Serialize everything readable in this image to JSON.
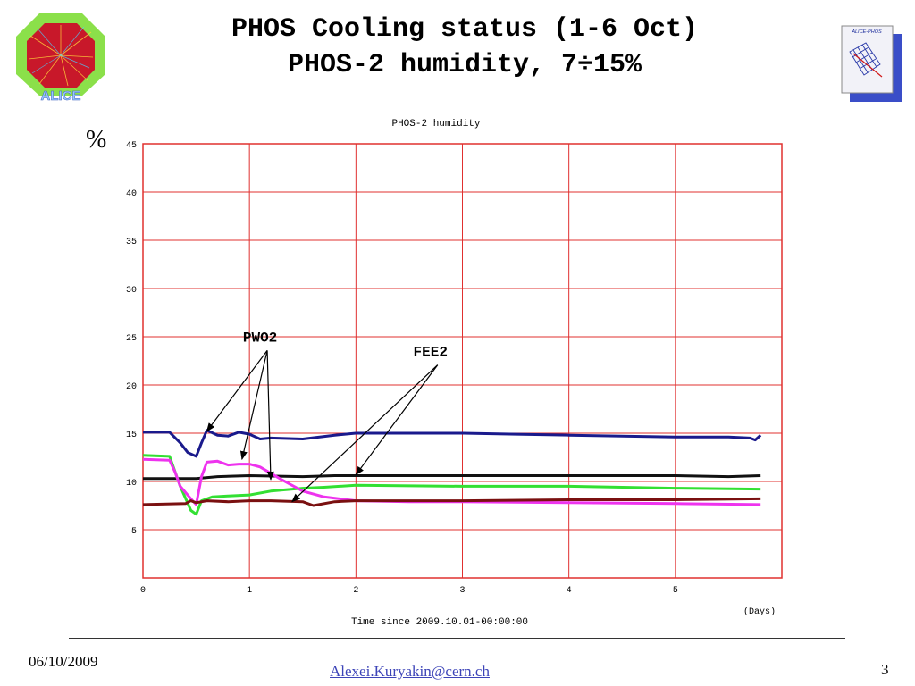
{
  "slide": {
    "title_line1": "PHOS Cooling status (1-6 Oct)",
    "title_line2": "PHOS-2 humidity, 7÷15%",
    "date": "06/10/2009",
    "email": "Alexei.Kuryakin@cern.ch",
    "page_number": "3",
    "y_unit": "%",
    "logo_left_text": "ALICE",
    "logo_right_text": "ALICE-PHOS"
  },
  "colors": {
    "grid": "#e0302f",
    "series_blue": "#1a1a8c",
    "series_black": "#111111",
    "series_green": "#33e033",
    "series_magenta": "#ee33ee",
    "series_darkred": "#7a1010"
  },
  "chart_data": {
    "type": "line",
    "title": "PHOS-2 humidity",
    "xlabel": "Time since 2009.10.01-00:00:00",
    "x_unit": "(Days)",
    "ylabel": "%",
    "xlim": [
      0,
      6
    ],
    "ylim": [
      0,
      45
    ],
    "xticks": [
      0,
      1,
      2,
      3,
      4,
      5
    ],
    "yticks": [
      5,
      10,
      15,
      20,
      25,
      30,
      35,
      40,
      45
    ],
    "grid": true,
    "annotations": [
      {
        "text": "PWO2",
        "x": 1.1,
        "y": 24.5,
        "arrows_to": [
          [
            0.6,
            15.2
          ],
          [
            0.93,
            12.3
          ],
          [
            1.2,
            10.2
          ]
        ]
      },
      {
        "text": "FEE2",
        "x": 2.7,
        "y": 23.0,
        "arrows_to": [
          [
            2.0,
            10.7
          ],
          [
            1.4,
            7.9
          ]
        ]
      }
    ],
    "series": [
      {
        "color": "blue",
        "x": [
          0,
          0.25,
          0.35,
          0.42,
          0.5,
          0.55,
          0.6,
          0.7,
          0.8,
          0.9,
          1.0,
          1.1,
          1.2,
          1.5,
          1.8,
          2.0,
          2.5,
          3.0,
          3.5,
          4.0,
          4.5,
          5.0,
          5.5,
          5.7,
          5.75,
          5.8
        ],
        "y": [
          15.1,
          15.1,
          14.0,
          13.0,
          12.6,
          14.0,
          15.3,
          14.8,
          14.7,
          15.1,
          14.9,
          14.4,
          14.5,
          14.4,
          14.8,
          15.0,
          15.0,
          15.0,
          14.9,
          14.8,
          14.7,
          14.6,
          14.6,
          14.5,
          14.3,
          14.8
        ]
      },
      {
        "color": "black",
        "x": [
          0,
          0.5,
          0.7,
          1.0,
          1.5,
          1.8,
          2.0,
          3.0,
          4.0,
          5.0,
          5.5,
          5.8
        ],
        "y": [
          10.3,
          10.3,
          10.5,
          10.6,
          10.5,
          10.6,
          10.6,
          10.6,
          10.6,
          10.6,
          10.5,
          10.6
        ]
      },
      {
        "color": "green",
        "x": [
          0,
          0.25,
          0.35,
          0.45,
          0.5,
          0.55,
          0.65,
          0.8,
          1.0,
          1.2,
          1.5,
          1.7,
          2.0,
          3.0,
          4.0,
          4.5,
          5.0,
          5.8
        ],
        "y": [
          12.7,
          12.6,
          9.5,
          7.0,
          6.6,
          8.0,
          8.4,
          8.5,
          8.6,
          9.0,
          9.3,
          9.4,
          9.6,
          9.5,
          9.5,
          9.4,
          9.3,
          9.2
        ]
      },
      {
        "color": "magenta",
        "x": [
          0,
          0.25,
          0.3,
          0.35,
          0.45,
          0.5,
          0.55,
          0.6,
          0.7,
          0.8,
          0.9,
          1.0,
          1.1,
          1.3,
          1.5,
          1.7,
          2.0,
          2.5,
          3.0,
          4.0,
          5.0,
          5.8
        ],
        "y": [
          12.3,
          12.2,
          11.0,
          9.5,
          8.2,
          7.6,
          10.5,
          12.0,
          12.1,
          11.7,
          11.8,
          11.8,
          11.5,
          10.2,
          9.0,
          8.4,
          8.0,
          7.9,
          7.9,
          7.8,
          7.7,
          7.6
        ]
      },
      {
        "color": "darkred",
        "x": [
          0,
          0.4,
          0.45,
          0.5,
          0.6,
          0.8,
          1.0,
          1.2,
          1.5,
          1.6,
          1.8,
          2.0,
          3.0,
          4.0,
          5.0,
          5.8
        ],
        "y": [
          7.6,
          7.7,
          8.0,
          7.8,
          8.0,
          7.9,
          8.0,
          8.0,
          7.9,
          7.5,
          7.9,
          8.0,
          8.0,
          8.1,
          8.1,
          8.2
        ]
      }
    ]
  }
}
